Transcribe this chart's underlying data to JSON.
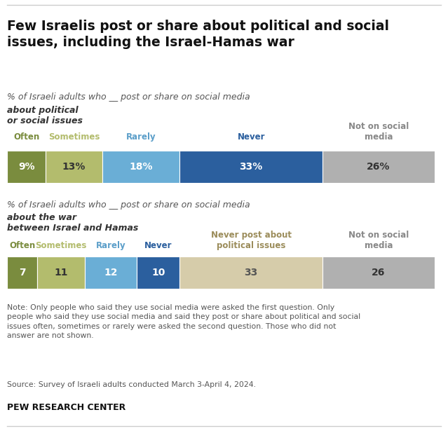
{
  "title": "Few Israelis post or share about political and social\nissues, including the Israel-Hamas war",
  "chart1": {
    "subtitle_plain": "% of Israeli adults who __ post or share on social media ",
    "subtitle_bold": "about political\nor social issues",
    "legend_labels": [
      "Often",
      "Sometimes",
      "Rarely",
      "Never",
      "Not on social\nmedia"
    ],
    "legend_colors": [
      "#7a8c3e",
      "#b3bc6d",
      "#6aaed6",
      "#2b5f9e",
      "#b0b0b0"
    ],
    "legend_text_colors": [
      "#7a8c3e",
      "#b3bc6d",
      "#5b9ec9",
      "#2b5f9e",
      "#888888"
    ],
    "values": [
      9,
      13,
      18,
      33,
      26
    ],
    "labels": [
      "9%",
      "13%",
      "18%",
      "33%",
      "26%"
    ],
    "label_colors": [
      "white",
      "#333333",
      "white",
      "white",
      "#333333"
    ]
  },
  "chart2": {
    "subtitle_plain": "% of Israeli adults who __ post or share on social media ",
    "subtitle_bold": "about the war\nbetween Israel and Hamas",
    "legend_labels": [
      "Often",
      "Sometimes",
      "Rarely",
      "Never",
      "Never post about\npolitical issues",
      "Not on social\nmedia"
    ],
    "legend_colors": [
      "#7a8c3e",
      "#b3bc6d",
      "#6aaed6",
      "#2b5f9e",
      "#d6ccaa",
      "#b0b0b0"
    ],
    "legend_text_colors": [
      "#7a8c3e",
      "#b3bc6d",
      "#5b9ec9",
      "#2b5f9e",
      "#9b8c5a",
      "#888888"
    ],
    "values": [
      7,
      11,
      12,
      10,
      33,
      26
    ],
    "labels": [
      "7",
      "11",
      "12",
      "10",
      "33",
      "26"
    ],
    "label_colors": [
      "white",
      "#333333",
      "white",
      "white",
      "#555555",
      "#333333"
    ]
  },
  "note": "Note: Only people who said they use social media were asked the first question. Only\npeople who said they use social media and said they post or share about political and social\nissues often, sometimes or rarely were asked the second question. Those who did not\nanswer are not shown.",
  "source": "Source: Survey of Israeli adults conducted March 3-April 4, 2024.",
  "footer": "PEW RESEARCH CENTER",
  "bg": "#ffffff"
}
